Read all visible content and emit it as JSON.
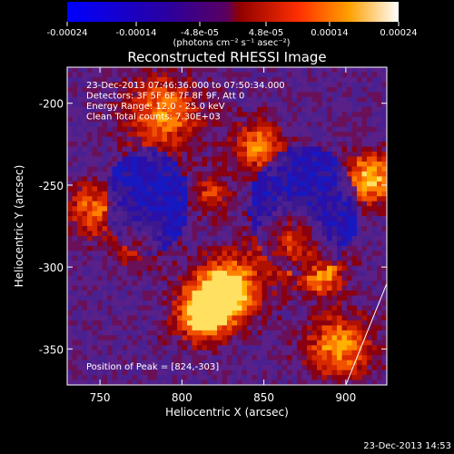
{
  "colorbar": {
    "ticks": [
      "-0.00024",
      "-0.00014",
      "-4.8e-05",
      "4.8e-05",
      "0.00014",
      "0.00024"
    ],
    "tick_values": [
      -0.00024,
      -0.00014,
      -4.8e-05,
      4.8e-05,
      0.00014,
      0.00024
    ],
    "range": [
      -0.00024,
      0.00024
    ],
    "units": "(photons cm⁻² s⁻¹ asec⁻²)",
    "colors": [
      "#0000ff",
      "#4b0080",
      "#900000",
      "#ff5a00",
      "#ffd000",
      "#ffffff"
    ]
  },
  "chart_data": {
    "type": "heatmap",
    "title": "Reconstructed RHESSI Image",
    "xlabel": "Heliocentric X (arcsec)",
    "ylabel": "Heliocentric Y (arcsec)",
    "xlim": [
      730,
      925
    ],
    "ylim": [
      -372,
      -178
    ],
    "xticks": [
      750,
      800,
      850,
      900
    ],
    "yticks": [
      -200,
      -250,
      -300,
      -350
    ],
    "xtick_labels": [
      "750",
      "800",
      "850",
      "900"
    ],
    "ytick_labels": [
      "-200",
      "-250",
      "-300",
      "-350"
    ],
    "annotations": [
      "23-Dec-2013 07:46:36.000 to 07:50:34.000",
      "Detectors: 3F 5F 6F 7F 8F 9F, Att 0",
      "Energy Range: 12.0 - 25.0 keV",
      "Clean     Total counts: 7.30E+03"
    ],
    "peak_label": "Position of Peak = [824,-303]",
    "peak": [
      824,
      -303
    ],
    "limb_line": [
      [
        900,
        -372
      ],
      [
        925,
        -310
      ]
    ]
  },
  "timestamp": "23-Dec-2013 14:53"
}
